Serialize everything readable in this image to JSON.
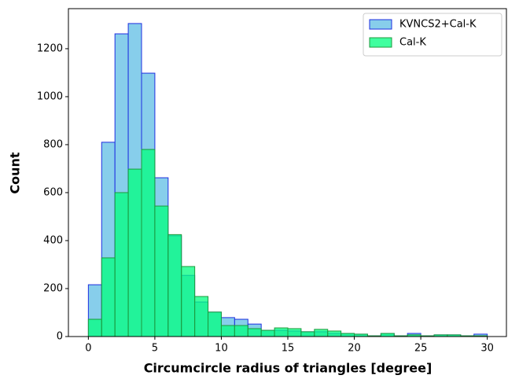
{
  "chart_data": {
    "type": "histogram",
    "xlabel": "Circumcircle radius of triangles [degree]",
    "ylabel": "Count",
    "bins": [
      0,
      1,
      2,
      3,
      4,
      5,
      6,
      7,
      8,
      9,
      10,
      11,
      12,
      13,
      14,
      15,
      16,
      17,
      18,
      19,
      20,
      21,
      22,
      23,
      24,
      25,
      26,
      27,
      28,
      29,
      30
    ],
    "series": [
      {
        "name": "KVNCS2+Cal-K",
        "color": "#87ceeb",
        "edgecolor": "#1f2fe0",
        "values": [
          216,
          810,
          1262,
          1305,
          1098,
          662,
          420,
          255,
          144,
          102,
          79,
          72,
          52,
          26,
          26,
          23,
          20,
          20,
          13,
          13,
          10,
          3,
          13,
          3,
          13,
          3,
          7,
          7,
          3,
          10
        ]
      },
      {
        "name": "Cal-K",
        "color": "#00ff7f",
        "edgecolor": "#1e9a3c",
        "values": [
          72,
          328,
          600,
          698,
          780,
          544,
          425,
          292,
          167,
          102,
          46,
          46,
          33,
          26,
          36,
          33,
          20,
          30,
          23,
          13,
          10,
          3,
          13,
          3,
          7,
          3,
          7,
          7,
          3,
          3
        ]
      }
    ],
    "xlim": [
      -1.5,
      31.5
    ],
    "ylim": [
      0,
      1367
    ],
    "xticks": [
      0,
      5,
      10,
      15,
      20,
      25,
      30
    ],
    "yticks": [
      0,
      200,
      400,
      600,
      800,
      1000,
      1200
    ],
    "legend": "upper right"
  }
}
